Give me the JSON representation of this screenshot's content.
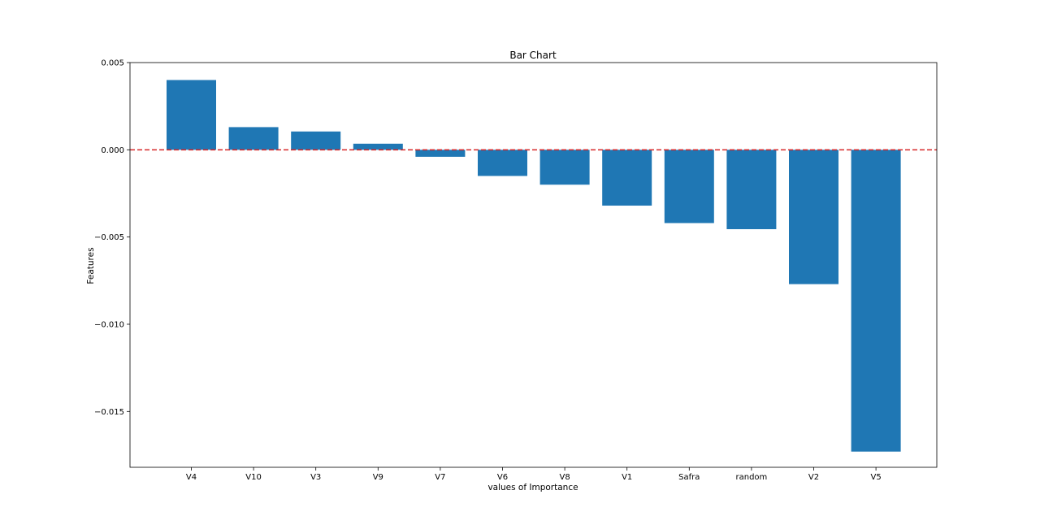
{
  "chart_data": {
    "type": "bar",
    "title": "Bar Chart",
    "xlabel": "values of Importance",
    "ylabel": "Features",
    "categories": [
      "V4",
      "V10",
      "V3",
      "V9",
      "V7",
      "V6",
      "V8",
      "V1",
      "Safra",
      "random",
      "V2",
      "V5"
    ],
    "values": [
      0.004,
      0.0013,
      0.00105,
      0.00035,
      -0.0004,
      -0.0015,
      -0.002,
      -0.0032,
      -0.0042,
      -0.00455,
      -0.0077,
      -0.0173
    ],
    "ylim": [
      -0.0182,
      0.005
    ],
    "yticks": [
      0.005,
      0.0,
      -0.005,
      -0.01,
      -0.015
    ],
    "ytick_labels": [
      "0.005",
      "0.000",
      "−0.005",
      "−0.010",
      "−0.015"
    ],
    "reference_line": {
      "y": 0,
      "style": "dashed",
      "color": "#d62728"
    },
    "bar_color": "#1f77b4",
    "grid": false,
    "legend": "none"
  }
}
